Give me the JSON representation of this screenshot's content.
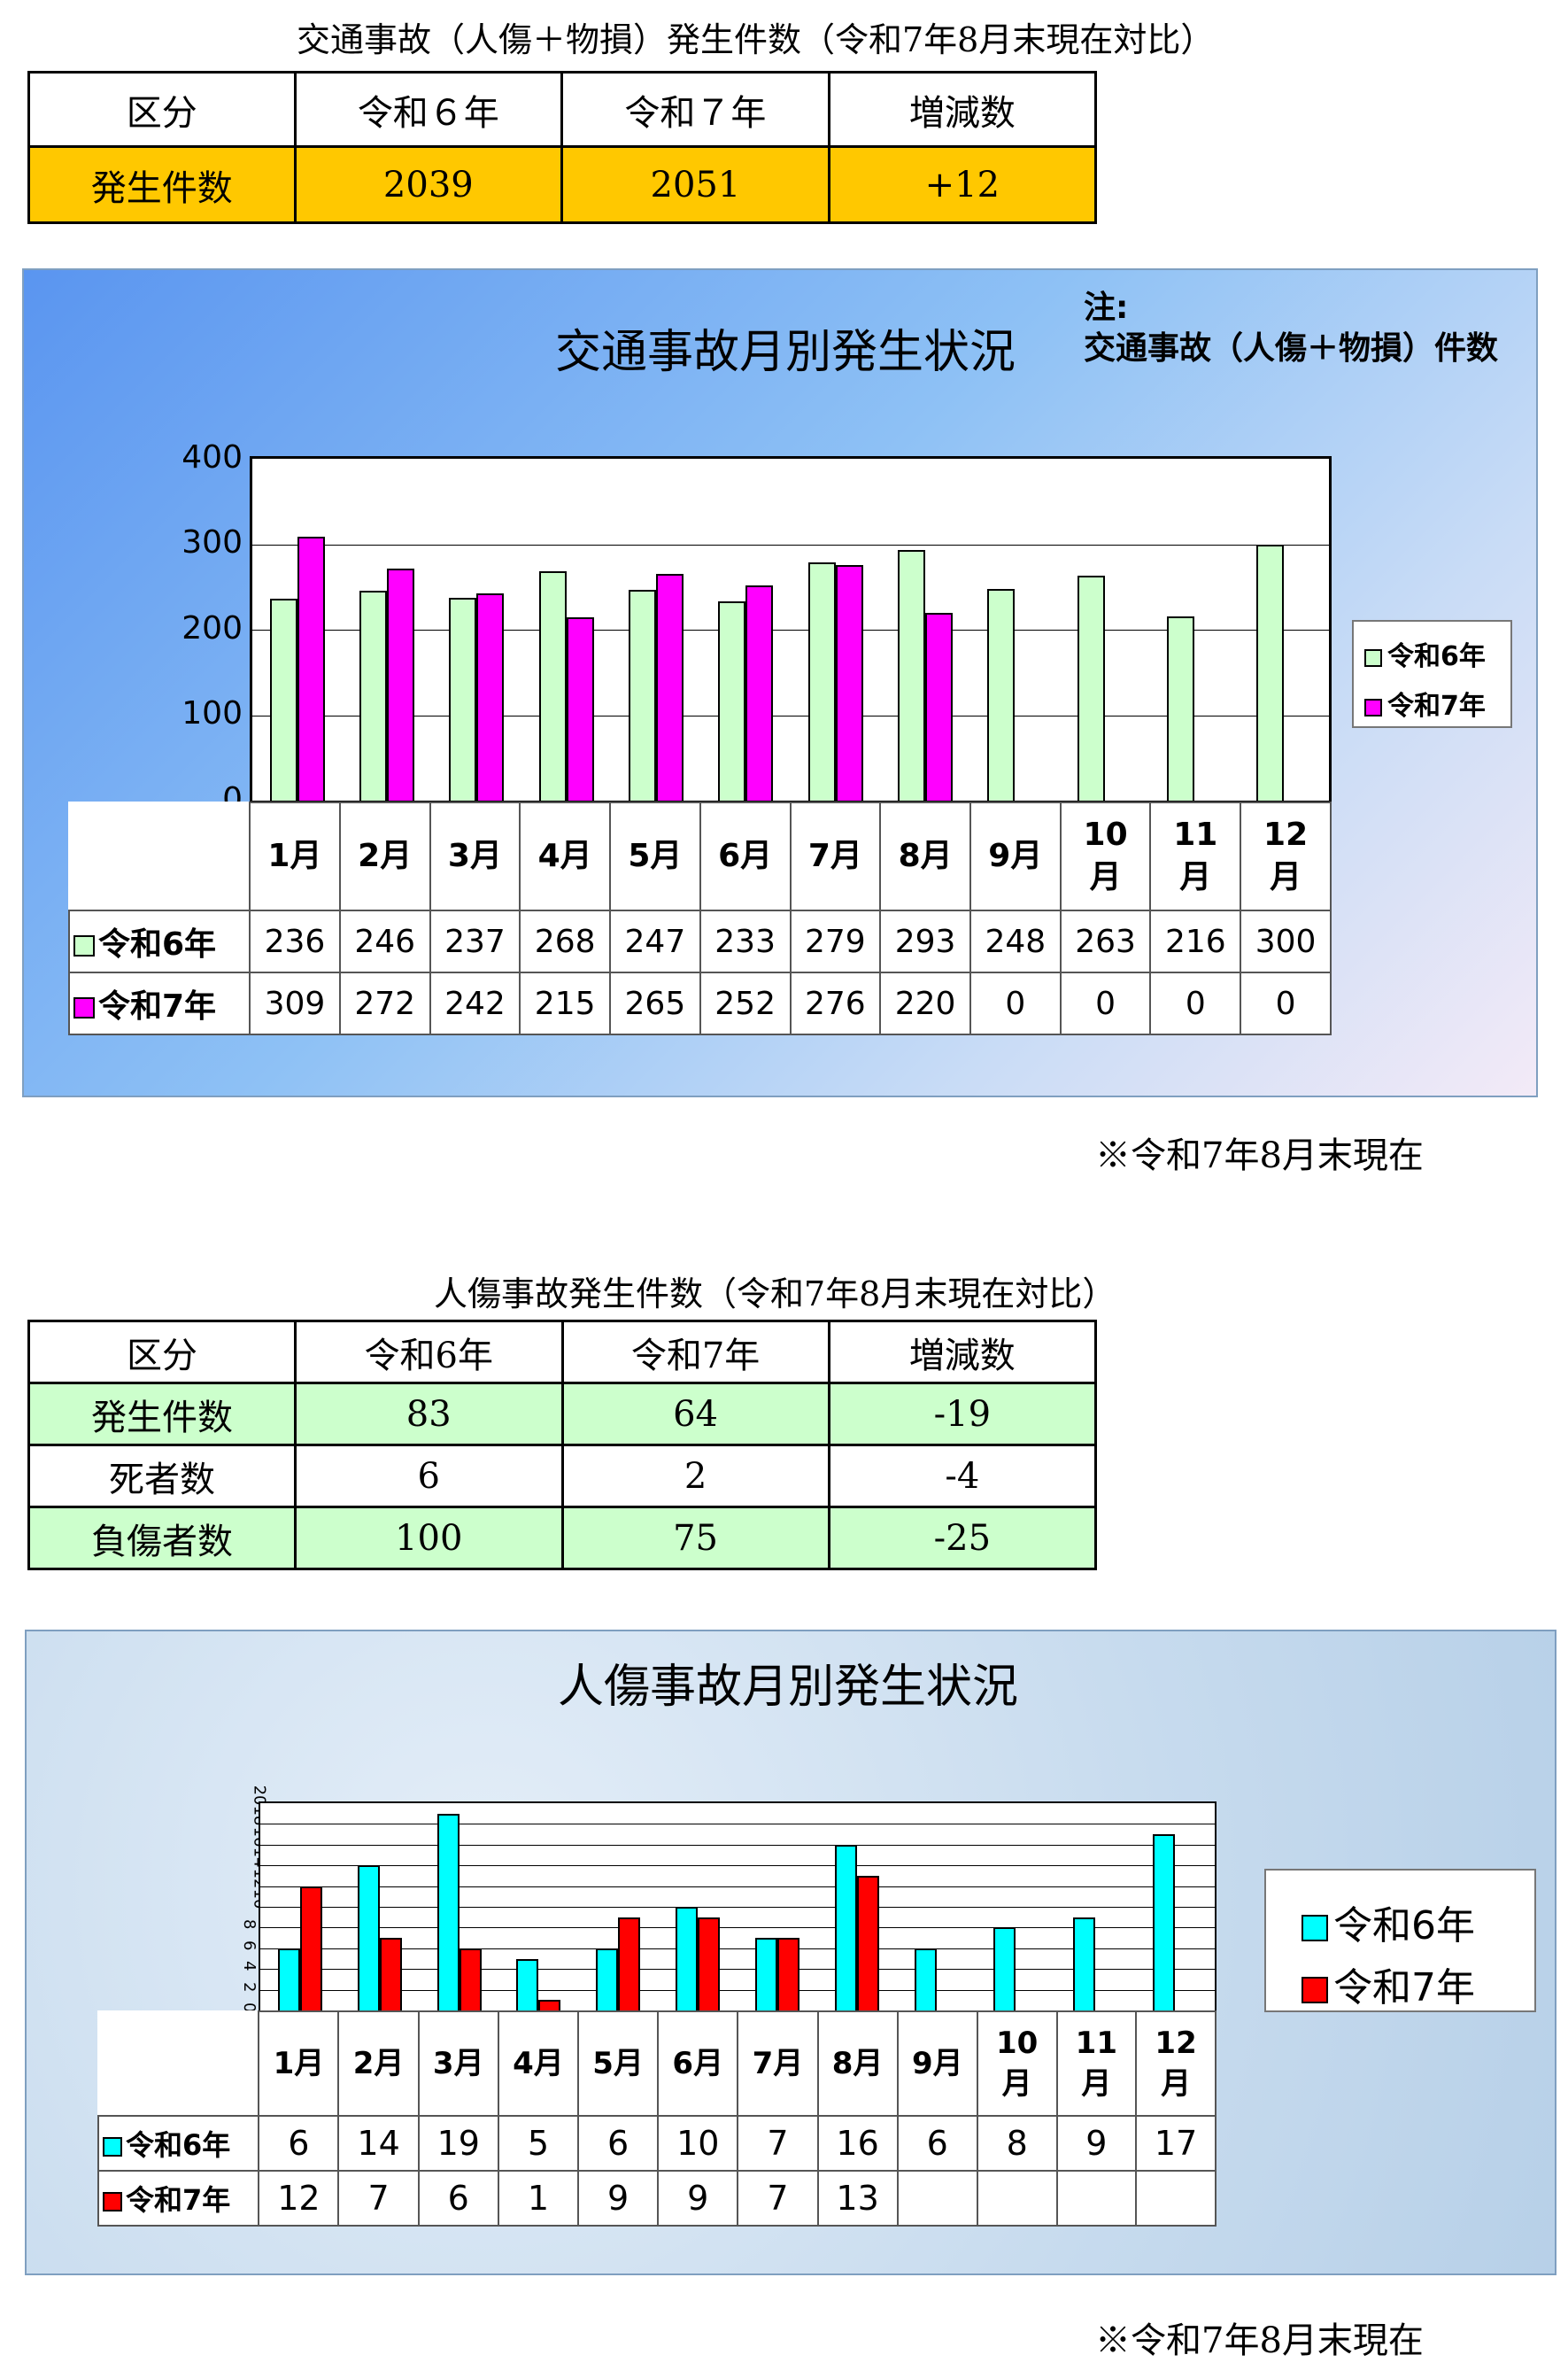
{
  "table1": {
    "caption": "交通事故（人傷＋物損）発生件数（令和7年8月末現在対比）",
    "headers": [
      "区分",
      "令和６年",
      "令和７年",
      "増減数"
    ],
    "row": [
      "発生件数",
      "2039",
      "2051",
      "+12"
    ]
  },
  "chart1": {
    "title": "交通事故月別発生状況",
    "note_line1": "注:",
    "note_line2": "交通事故（人傷＋物損）件数",
    "yticks": [
      "400",
      "300",
      "200",
      "100",
      "0"
    ],
    "footnote": "※令和7年8月末現在"
  },
  "table2": {
    "caption": "人傷事故発生件数（令和7年8月末現在対比）",
    "headers": [
      "区分",
      "令和6年",
      "令和7年",
      "増減数"
    ],
    "rows": [
      [
        "発生件数",
        "83",
        "64",
        "-19"
      ],
      [
        "死者数",
        "6",
        "2",
        "-4"
      ],
      [
        "負傷者数",
        "100",
        "75",
        "-25"
      ]
    ]
  },
  "chart2": {
    "title": "人傷事故月別発生状況",
    "yticks": [
      "20",
      "18",
      "16",
      "14",
      "12",
      "10",
      "8",
      "6",
      "4",
      "2",
      "0"
    ],
    "footnote": "※令和7年8月末現在"
  },
  "colors": {
    "table1_data_row": "#ffc800",
    "table2_green_rows": "#ccffcc",
    "chart1_series1": "#ccffcc",
    "chart1_series2": "#ff00ff",
    "chart2_series1": "#00ffff",
    "chart2_series2": "#ff0000"
  },
  "chart_data": [
    {
      "type": "bar",
      "title": "交通事故月別発生状況",
      "categories": [
        "1月",
        "2月",
        "3月",
        "4月",
        "5月",
        "6月",
        "7月",
        "8月",
        "9月",
        "10月",
        "11月",
        "12月"
      ],
      "series": [
        {
          "name": "令和6年",
          "color": "#ccffcc",
          "values": [
            236,
            246,
            237,
            268,
            247,
            233,
            279,
            293,
            248,
            263,
            216,
            300
          ]
        },
        {
          "name": "令和7年",
          "color": "#ff00ff",
          "values": [
            309,
            272,
            242,
            215,
            265,
            252,
            276,
            220,
            0,
            0,
            0,
            0
          ]
        }
      ],
      "table_values": [
        [
          "236",
          "246",
          "237",
          "268",
          "247",
          "233",
          "279",
          "293",
          "248",
          "263",
          "216",
          "300"
        ],
        [
          "309",
          "272",
          "242",
          "215",
          "265",
          "252",
          "276",
          "220",
          "0",
          "0",
          "0",
          "0"
        ]
      ],
      "ylim": [
        0,
        400
      ],
      "grid": true,
      "legend": "right"
    },
    {
      "type": "bar",
      "title": "人傷事故月別発生状況",
      "categories": [
        "1月",
        "2月",
        "3月",
        "4月",
        "5月",
        "6月",
        "7月",
        "8月",
        "9月",
        "10月",
        "11月",
        "12月"
      ],
      "series": [
        {
          "name": "令和6年",
          "color": "#00ffff",
          "values": [
            6,
            14,
            19,
            5,
            6,
            10,
            7,
            16,
            6,
            8,
            9,
            17
          ]
        },
        {
          "name": "令和7年",
          "color": "#ff0000",
          "values": [
            12,
            7,
            6,
            1,
            9,
            9,
            7,
            13,
            null,
            null,
            null,
            null
          ]
        }
      ],
      "table_values": [
        [
          "6",
          "14",
          "19",
          "5",
          "6",
          "10",
          "7",
          "16",
          "6",
          "8",
          "9",
          "17"
        ],
        [
          "12",
          "7",
          "6",
          "1",
          "9",
          "9",
          "7",
          "13",
          "",
          "",
          "",
          ""
        ]
      ],
      "ylim": [
        0,
        20
      ],
      "grid": true,
      "legend": "right"
    }
  ]
}
